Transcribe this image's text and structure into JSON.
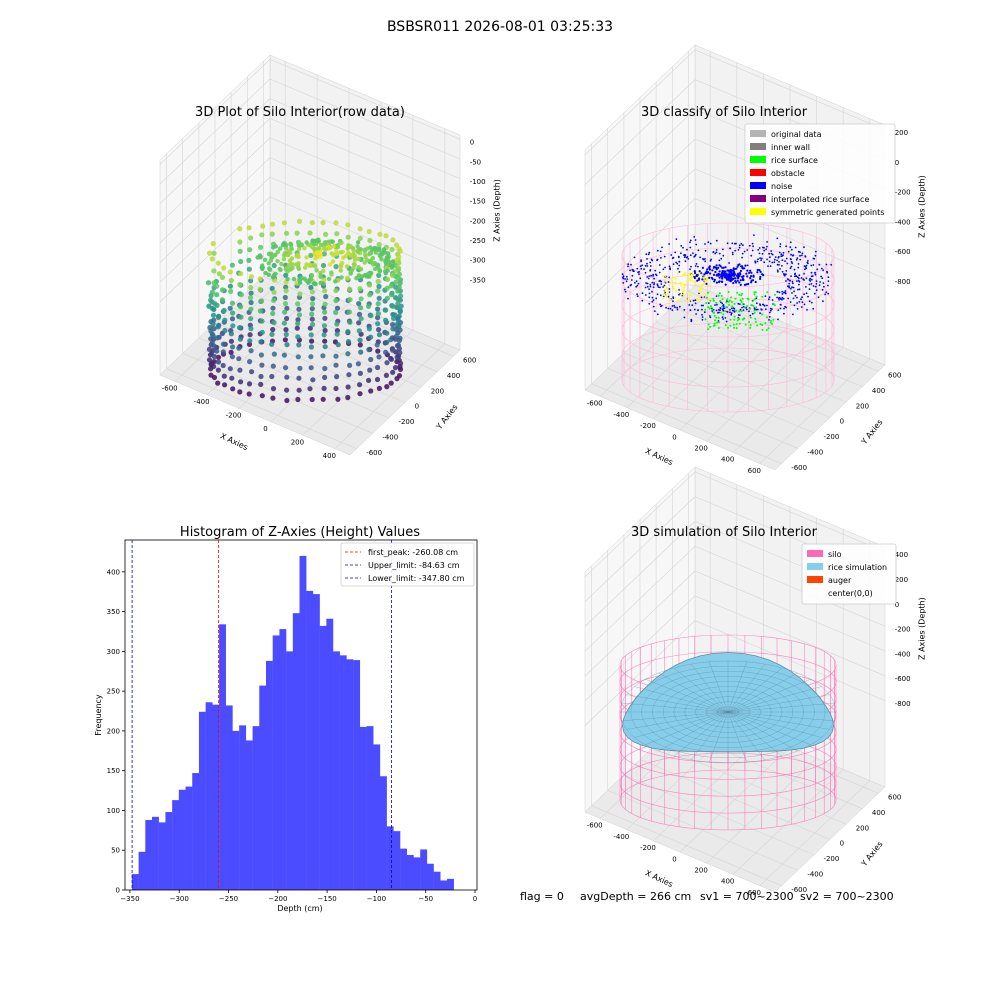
{
  "figure_title": "BSBSR011 2026-08-01 03:25:33",
  "footer": {
    "flag": "flag = 0",
    "avg": "avgDepth = 266 cm",
    "sv1": "sv1 = 700~2300",
    "sv2": "sv2 = 700~2300"
  },
  "colors": {
    "hist_bar": "#4b4bff",
    "peak_line": "#ff0000",
    "limit_line": "#0000cc",
    "original": "#b4b4b4",
    "inner_wall": "#808080",
    "rice_surface": "#00ff00",
    "obstacle": "#ff0000",
    "noise": "#0000ff",
    "interpolated": "#800080",
    "symmetric": "#ffff00",
    "silo": "#ff69b4",
    "rice_sim": "#87ceeb",
    "auger": "#ff4500"
  },
  "chart_data": [
    {
      "type": "scatter",
      "title": "3D Plot of Silo Interior(row data)",
      "xlabel": "X Axies",
      "ylabel": "Y Axies",
      "zlabel": "Z Axies (Depth)",
      "xticks": [
        "-600",
        "-400",
        "-200",
        "0",
        "200",
        "400"
      ],
      "yticks": [
        "-600",
        "-400",
        "-200",
        "0",
        "200",
        "400",
        "600"
      ],
      "zticks": [
        "0",
        "-50",
        "-100",
        "-150",
        "-200",
        "-250",
        "-300",
        "-350"
      ],
      "colormap": "viridis"
    },
    {
      "type": "scatter",
      "title": "3D classify of Silo Interior",
      "xlabel": "X Axies",
      "ylabel": "Y Axies",
      "zlabel": "Z Axies (Depth)",
      "xticks": [
        "-600",
        "-400",
        "-200",
        "0",
        "200",
        "400",
        "600"
      ],
      "yticks": [
        "-600",
        "-400",
        "-200",
        "0",
        "200",
        "400",
        "600"
      ],
      "zticks": [
        "200",
        "0",
        "-200",
        "-400",
        "-600",
        "-800"
      ],
      "legend": [
        "original data",
        "inner wall",
        "rice surface",
        "obstacle",
        "noise",
        "interpolated rice surface",
        "symmetric generated points"
      ]
    },
    {
      "type": "bar",
      "title": "Histogram of Z-Axies (Height) Values",
      "xlabel": "Depth (cm)",
      "ylabel": "Frequency",
      "xlim": [
        -355,
        2
      ],
      "ylim": [
        0,
        440
      ],
      "bin_start": -348,
      "bin_width": 6.8,
      "values": [
        20,
        48,
        88,
        92,
        85,
        98,
        113,
        126,
        130,
        147,
        224,
        236,
        233,
        334,
        232,
        200,
        207,
        188,
        206,
        257,
        288,
        320,
        328,
        300,
        348,
        420,
        376,
        372,
        332,
        341,
        300,
        295,
        290,
        289,
        205,
        206,
        183,
        143,
        80,
        74,
        52,
        44,
        41,
        51,
        33,
        23,
        12,
        14
      ],
      "xticks": [
        -350,
        -300,
        -250,
        -200,
        -150,
        -100,
        -50,
        0
      ],
      "yticks": [
        0,
        50,
        100,
        150,
        200,
        250,
        300,
        350,
        400
      ],
      "vlines": [
        {
          "name": "first_peak: -260.08 cm",
          "x": -260.08,
          "color": "red"
        },
        {
          "name": "Upper_limit: -84.63 cm",
          "x": -84.63,
          "color": "blue"
        },
        {
          "name": "Lower_limit: -347.80 cm",
          "x": -347.8,
          "color": "blue"
        }
      ]
    },
    {
      "type": "area",
      "title": "3D simulation of Silo Interior",
      "xlabel": "X Axies",
      "ylabel": "Y Axies",
      "zlabel": "Z Axies (Depth)",
      "xticks": [
        "-600",
        "-400",
        "-200",
        "0",
        "200",
        "400",
        "600"
      ],
      "yticks": [
        "-600",
        "-400",
        "-200",
        "0",
        "200",
        "400",
        "600"
      ],
      "zticks": [
        "400",
        "200",
        "0",
        "-200",
        "-400",
        "-600",
        "-800"
      ],
      "legend": [
        "silo",
        "rice simulation",
        "auger",
        "center(0,0)"
      ]
    }
  ]
}
